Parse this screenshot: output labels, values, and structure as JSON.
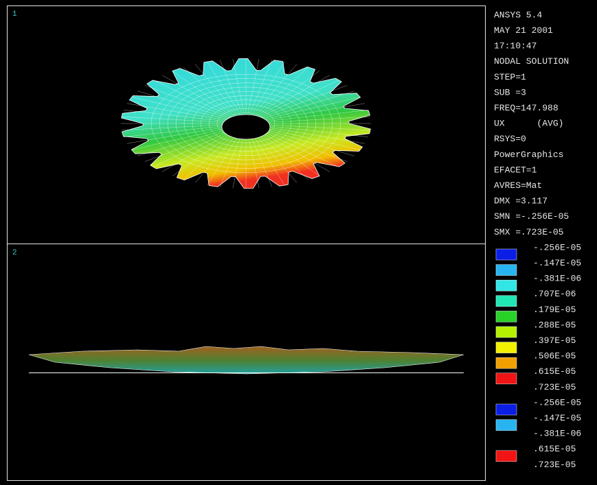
{
  "viewports": [
    {
      "label": "1"
    },
    {
      "label": "2"
    }
  ],
  "info": [
    "ANSYS 5.4",
    "MAY 21 2001",
    "17:10:47",
    "NODAL SOLUTION",
    "STEP=1",
    "SUB =3",
    "FREQ=147.988",
    "UX      (AVG)",
    "RSYS=0",
    "PowerGraphics",
    "EFACET=1",
    "AVRES=Mat",
    "DMX =3.117",
    "SMN =-.256E-05",
    "SMX =.723E-05"
  ],
  "legend": {
    "levels": [
      "-.256E-05",
      "-.147E-05",
      "-.381E-06",
      ".707E-06",
      ".179E-05",
      ".288E-05",
      ".397E-05",
      ".506E-05",
      ".615E-05",
      ".723E-05"
    ],
    "colors": [
      "#0a1ee6",
      "#28b4f0",
      "#32e6e6",
      "#20e6b4",
      "#28d228",
      "#b4f000",
      "#f0f000",
      "#f0a000",
      "#f01414"
    ]
  },
  "legend2": {
    "items": [
      {
        "label": "-.256E-05",
        "color": "#0a1ee6"
      },
      {
        "label": "-.147E-05",
        "color": "#28b4f0"
      },
      {
        "label": "-.381E-06"
      },
      {
        "label": ".615E-05",
        "color": "#f01414"
      },
      {
        "label": ".723E-05"
      }
    ]
  }
}
